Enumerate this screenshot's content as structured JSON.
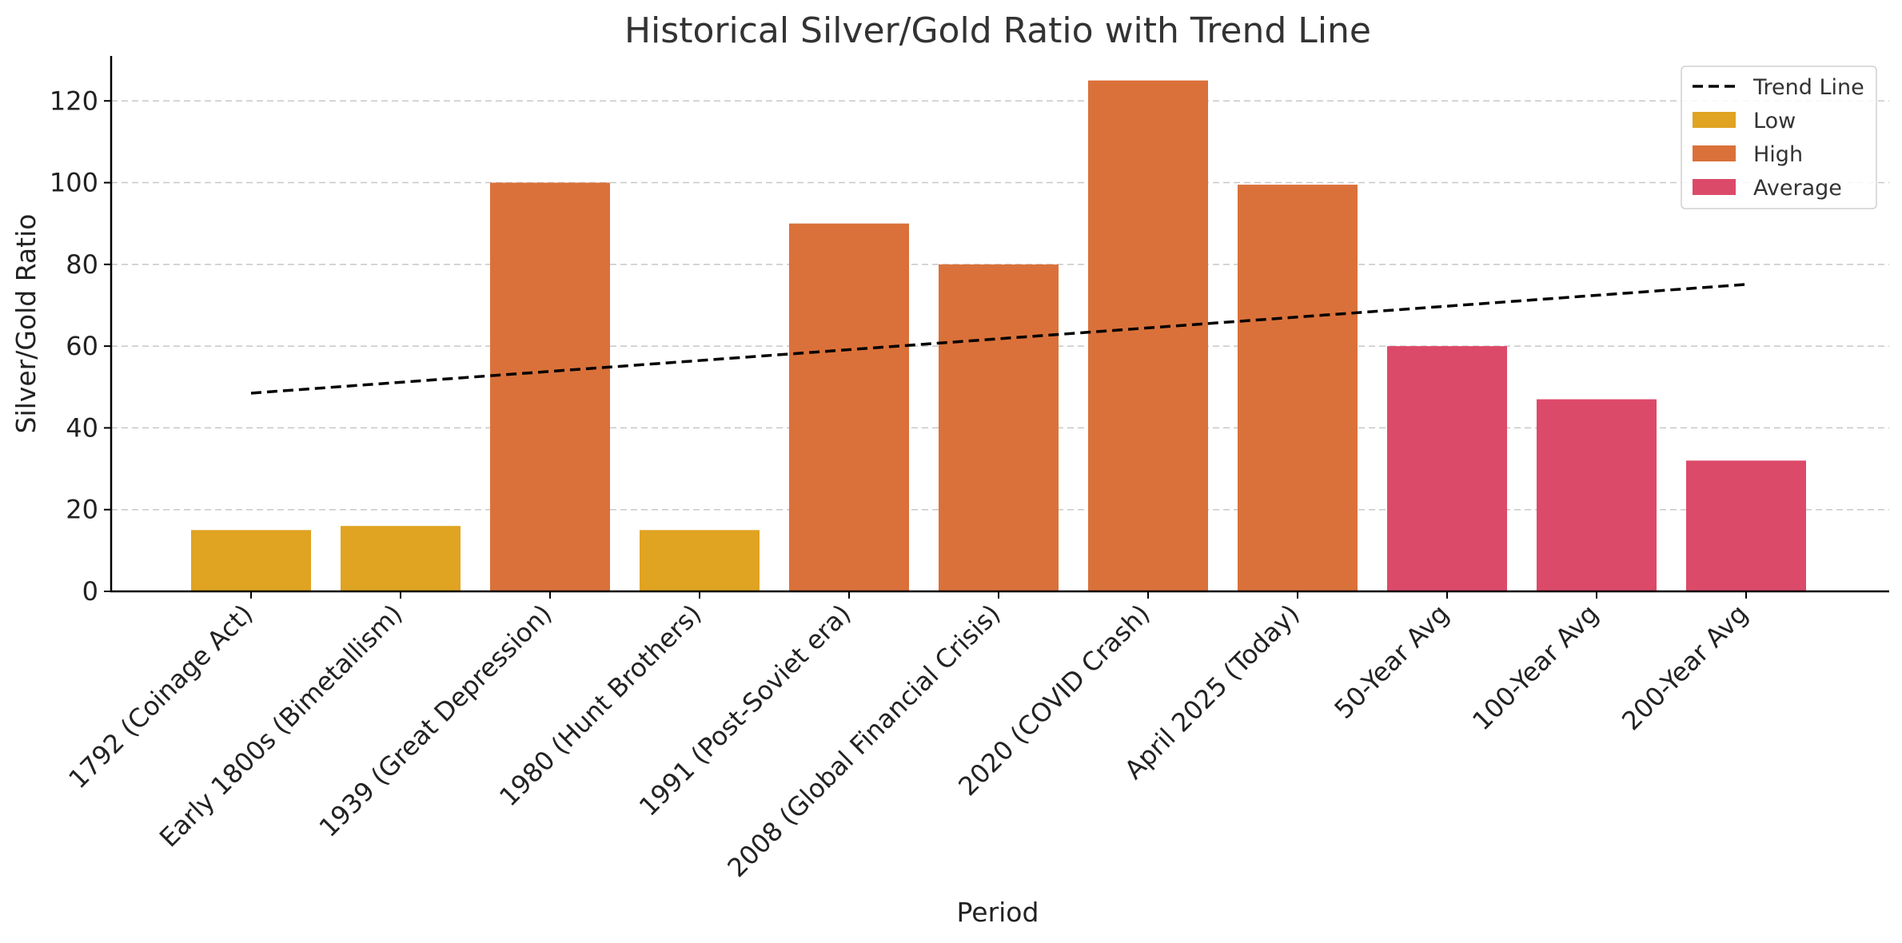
{
  "chart_data": {
    "type": "bar",
    "title": "Historical Silver/Gold Ratio with Trend Line",
    "xlabel": "Period",
    "ylabel": "Silver/Gold Ratio",
    "ylim": [
      0,
      131
    ],
    "yticks": [
      0,
      20,
      40,
      60,
      80,
      100,
      120
    ],
    "grid": "horizontal-dashed",
    "legend_position": "top-right",
    "categories": [
      "1792 (Coinage Act)",
      "Early 1800s (Bimetallism)",
      "1939 (Great Depression)",
      "1980 (Hunt Brothers)",
      "1991 (Post-Soviet era)",
      "2008 (Global Financial Crisis)",
      "2020 (COVID Crash)",
      "April 2025 (Today)",
      "50-Year Avg",
      "100-Year Avg",
      "200-Year Avg"
    ],
    "values": [
      15,
      16,
      100,
      15,
      90,
      80,
      125,
      99.5,
      60,
      47,
      32
    ],
    "groups": [
      "Low",
      "Low",
      "High",
      "Low",
      "High",
      "High",
      "High",
      "High",
      "Average",
      "Average",
      "Average"
    ],
    "group_colors": {
      "Low": "#E0A322",
      "High": "#DA713A",
      "Average": "#DC4A69"
    },
    "trend_line": {
      "name": "Trend Line",
      "start": 48.5,
      "end": 75.1,
      "color": "#000000",
      "style": "dashed"
    },
    "legend": [
      {
        "label": "Trend Line",
        "kind": "line",
        "color": "#000000"
      },
      {
        "label": "Low",
        "kind": "patch",
        "color": "#E0A322"
      },
      {
        "label": "High",
        "kind": "patch",
        "color": "#DA713A"
      },
      {
        "label": "Average",
        "kind": "patch",
        "color": "#DC4A69"
      }
    ]
  }
}
